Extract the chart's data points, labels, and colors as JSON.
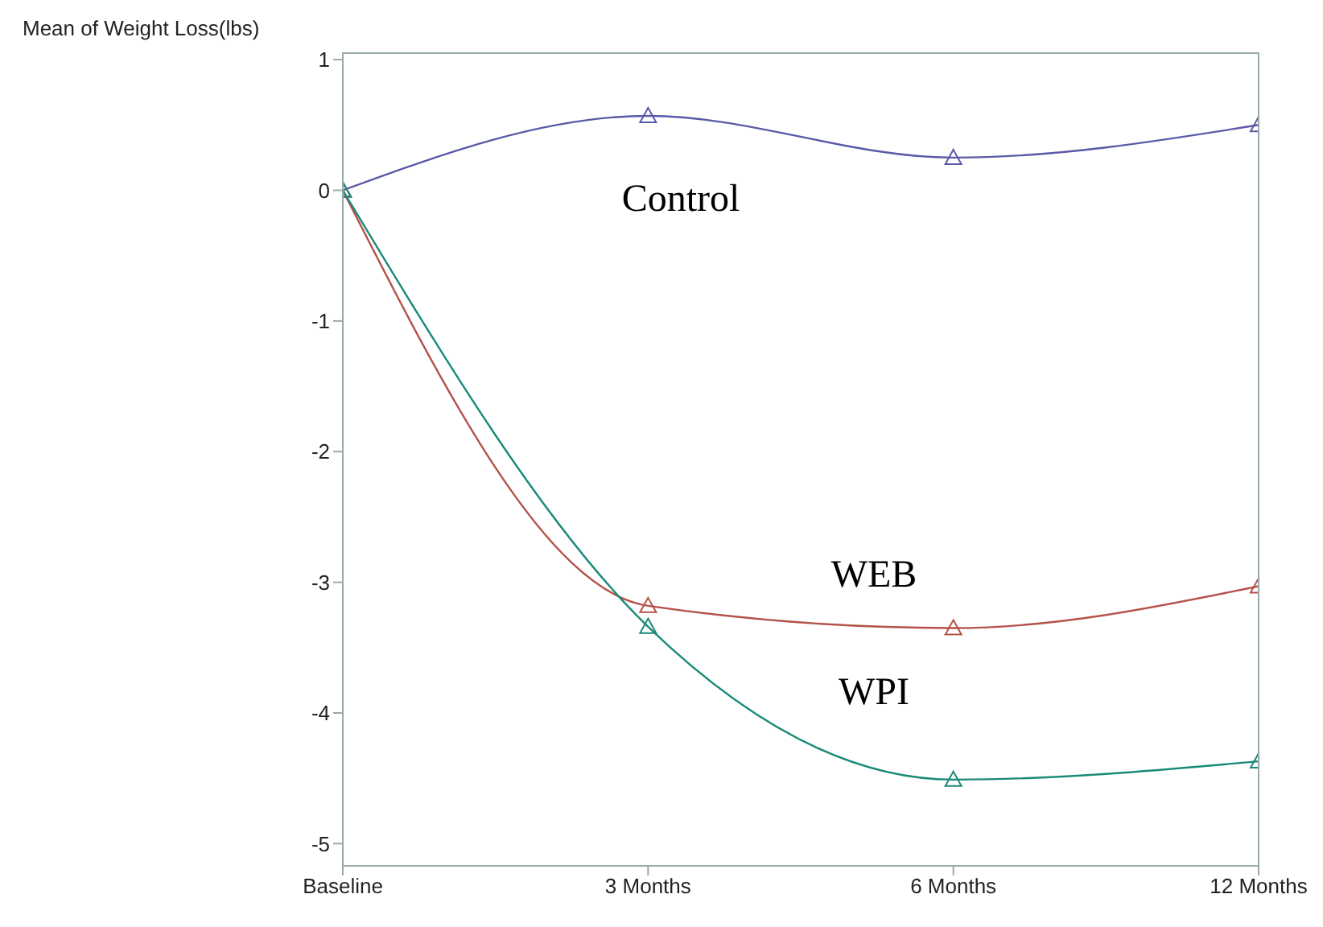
{
  "chart_data": {
    "type": "line",
    "ylabel": "Mean of Weight Loss(lbs)",
    "categories": [
      "Baseline",
      "3 Months",
      "6 Months",
      "12 Months"
    ],
    "series": [
      {
        "name": "Control",
        "color": "#5a5aa8",
        "values": [
          0,
          0.57,
          0.25,
          0.5
        ]
      },
      {
        "name": "WEB",
        "color": "#b5524a",
        "values": [
          0,
          -3.18,
          -3.35,
          -3.03
        ]
      },
      {
        "name": "WPI",
        "color": "#1a8a78",
        "values": [
          0,
          -3.34,
          -4.51,
          -4.37
        ]
      }
    ],
    "ylim": [
      -5.17,
      1.05
    ],
    "yticks": [
      -5,
      -4,
      -3,
      -2,
      -1,
      0,
      1
    ],
    "grid": false,
    "legend": false,
    "marker": "triangle",
    "line_style": "solid"
  }
}
